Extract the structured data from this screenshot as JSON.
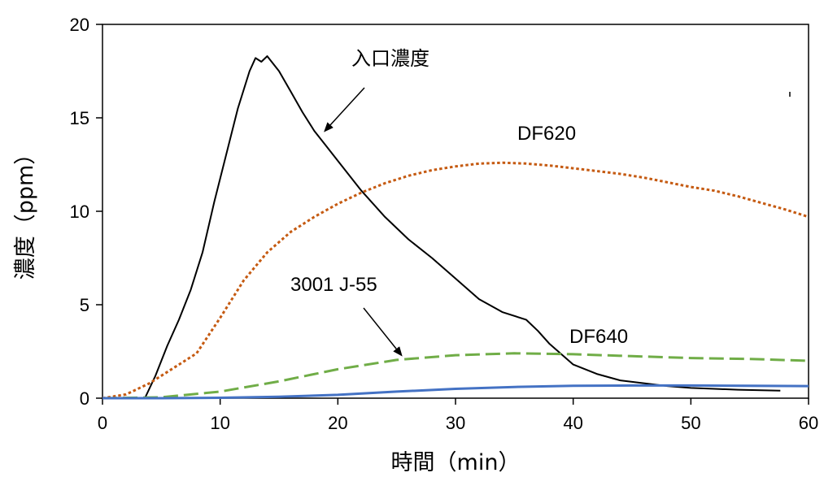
{
  "chart_data": {
    "type": "line",
    "title": "",
    "xlabel": "時間（min）",
    "ylabel": "濃度（ppm）",
    "xlim": [
      0,
      60
    ],
    "ylim": [
      0,
      20
    ],
    "xticks": [
      0,
      10,
      20,
      30,
      40,
      50,
      60
    ],
    "yticks": [
      0,
      5,
      10,
      15,
      20
    ],
    "grid": false,
    "legend": "none",
    "series": [
      {
        "name": "入口濃度",
        "color": "#000000",
        "style": "solid",
        "x": [
          3.6,
          4.5,
          5.5,
          6.5,
          7.5,
          8.5,
          9.5,
          10.5,
          11.5,
          12.5,
          13.0,
          13.5,
          14.0,
          15.0,
          16.0,
          17.0,
          18.0,
          19.0,
          20.0,
          22.0,
          24.0,
          26.0,
          28.0,
          30.0,
          32.0,
          34.0,
          36.0,
          37.0,
          38.0,
          40.0,
          42.0,
          44.0,
          46.0,
          48.0,
          50.0,
          52.0,
          54.0,
          56.0,
          57.6
        ],
        "y": [
          0.0,
          1.2,
          2.8,
          4.2,
          5.8,
          7.8,
          10.5,
          13.0,
          15.5,
          17.5,
          18.2,
          18.0,
          18.3,
          17.5,
          16.4,
          15.3,
          14.3,
          13.5,
          12.7,
          11.1,
          9.7,
          8.5,
          7.5,
          6.4,
          5.3,
          4.6,
          4.2,
          3.6,
          2.9,
          1.8,
          1.3,
          0.95,
          0.8,
          0.65,
          0.55,
          0.5,
          0.45,
          0.42,
          0.4
        ]
      },
      {
        "name": "DF620",
        "color": "#C55A11",
        "style": "dotted",
        "x": [
          0,
          2,
          4,
          6,
          8,
          10,
          12,
          14,
          16,
          18,
          20,
          22,
          24,
          26,
          28,
          30,
          32,
          34,
          36,
          38,
          40,
          42,
          44,
          46,
          48,
          50,
          52,
          54,
          56,
          58,
          60
        ],
        "y": [
          0.0,
          0.2,
          0.8,
          1.6,
          2.4,
          4.3,
          6.3,
          7.8,
          8.9,
          9.7,
          10.4,
          11.0,
          11.5,
          11.9,
          12.2,
          12.4,
          12.55,
          12.6,
          12.55,
          12.45,
          12.3,
          12.15,
          12.0,
          11.8,
          11.55,
          11.3,
          11.1,
          10.8,
          10.45,
          10.1,
          9.7
        ]
      },
      {
        "name": "3001 J-55",
        "color": "#70AD47",
        "style": "dashed",
        "x": [
          0,
          5,
          10,
          15,
          20,
          25,
          30,
          35,
          40,
          45,
          50,
          55,
          60
        ],
        "y": [
          0.0,
          0.05,
          0.35,
          0.9,
          1.55,
          2.05,
          2.3,
          2.4,
          2.35,
          2.25,
          2.15,
          2.1,
          2.0
        ]
      },
      {
        "name": "DF640",
        "color": "#4472C4",
        "style": "solid",
        "x": [
          0,
          5,
          10,
          15,
          20,
          25,
          30,
          35,
          40,
          45,
          50,
          55,
          60
        ],
        "y": [
          0.0,
          0.0,
          0.02,
          0.08,
          0.18,
          0.35,
          0.5,
          0.6,
          0.66,
          0.68,
          0.68,
          0.66,
          0.65
        ]
      }
    ],
    "annotations": [
      {
        "text": "入口濃度",
        "arrow_to": [
          18.9,
          14.3
        ]
      },
      {
        "text": "DF620",
        "arrow_to": null
      },
      {
        "text": "3001 J-55",
        "arrow_to": [
          25.4,
          2.3
        ]
      },
      {
        "text": "DF640",
        "arrow_to": null
      }
    ]
  }
}
